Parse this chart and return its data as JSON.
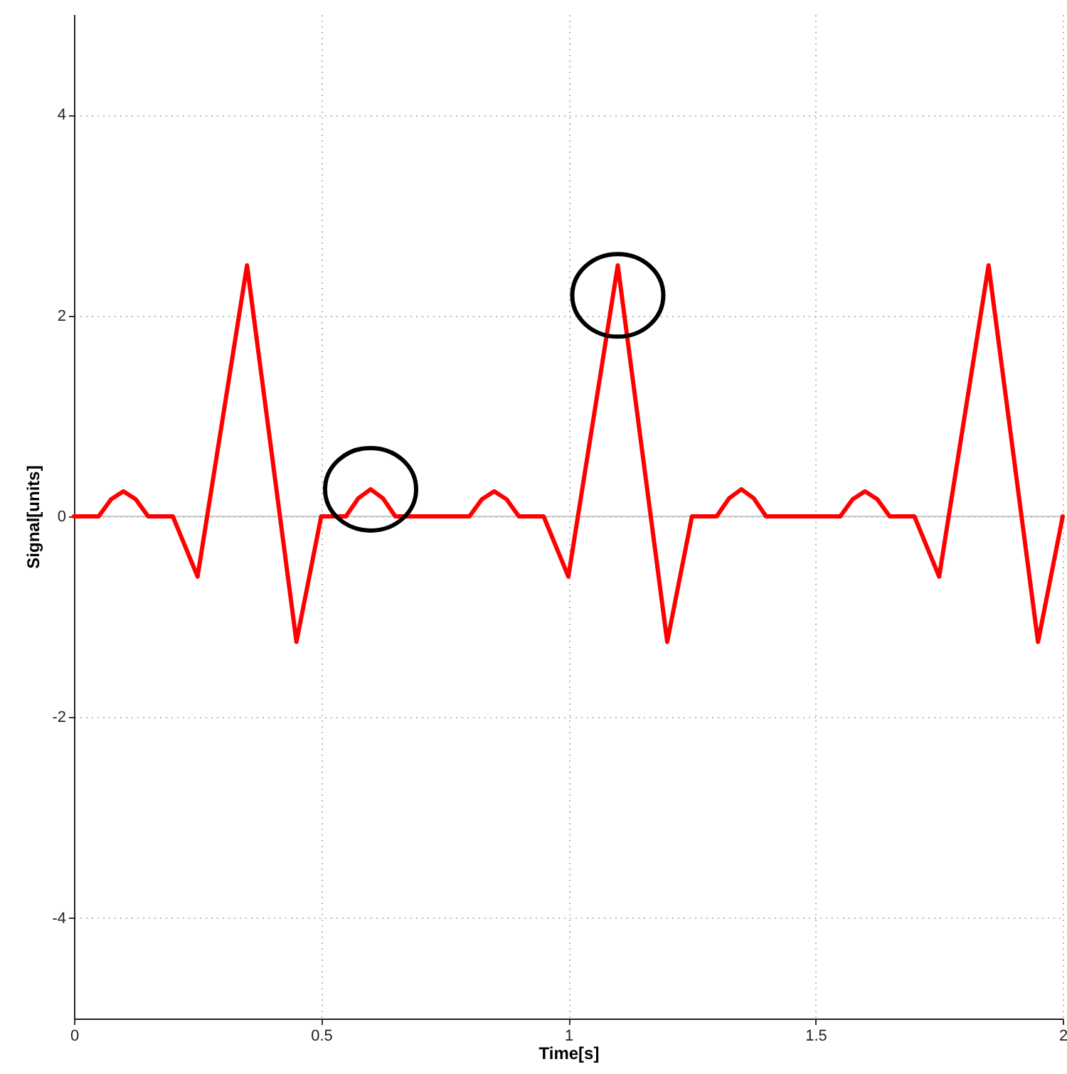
{
  "chart_data": {
    "type": "line",
    "xlabel": "Time[s]",
    "ylabel": "Signal[units]",
    "x": [
      0,
      0.05,
      0.075,
      0.1,
      0.125,
      0.15,
      0.2,
      0.25,
      0.35,
      0.45,
      0.5,
      0.55,
      0.575,
      0.6,
      0.625,
      0.65,
      0.75,
      0.8,
      0.825,
      0.85,
      0.875,
      0.9,
      0.95,
      1.0,
      1.1,
      1.2,
      1.25,
      1.3,
      1.325,
      1.35,
      1.375,
      1.4,
      1.5,
      1.55,
      1.575,
      1.6,
      1.625,
      1.65,
      1.7,
      1.75,
      1.85,
      1.95,
      2.0
    ],
    "series": [
      {
        "color": "#ff0000",
        "values": [
          0,
          0,
          0.17,
          0.25,
          0.17,
          0,
          0,
          -0.6,
          2.5,
          -1.25,
          0,
          0,
          0.18,
          0.27,
          0.18,
          0,
          0,
          0,
          0.17,
          0.25,
          0.17,
          0,
          0,
          -0.6,
          2.5,
          -1.25,
          0,
          0,
          0.18,
          0.27,
          0.18,
          0,
          0,
          0,
          0.17,
          0.25,
          0.17,
          0,
          0,
          -0.6,
          2.5,
          -1.25,
          0
        ]
      }
    ],
    "xlim": [
      0,
      2
    ],
    "ylim": [
      -5,
      5
    ],
    "xticks": [
      0,
      0.5,
      1,
      1.5,
      2
    ],
    "yticks": [
      -4,
      -2,
      0,
      2,
      4
    ],
    "grid": true,
    "marker": "none",
    "line_style": "solid",
    "ref_lines": [
      {
        "axis": "y",
        "value": 0,
        "color": "#c8c8c8"
      }
    ]
  }
}
